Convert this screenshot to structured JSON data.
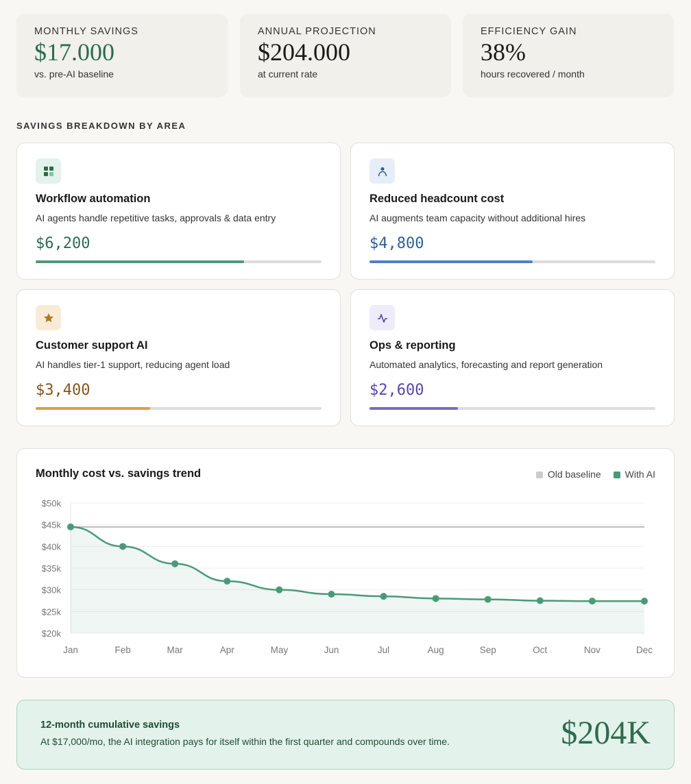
{
  "kpis": [
    {
      "label": "Monthly savings",
      "value": "$17.000",
      "sub": "vs. pre-AI baseline",
      "color": "#2d6b4f"
    },
    {
      "label": "Annual projection",
      "value": "$204.000",
      "sub": "at current rate",
      "color": "#111111"
    },
    {
      "label": "Efficiency gain",
      "value": "38%",
      "sub": "hours recovered / month",
      "color": "#111111"
    }
  ],
  "section_title": "SAVINGS BREAKDOWN BY AREA",
  "areas": [
    {
      "title": "Workflow automation",
      "desc": "AI agents handle repetitive tasks, approvals & data entry",
      "amount": "$6,200",
      "progress": 0.73,
      "color": "#4a9a78",
      "text_color": "#2d6b4f",
      "icon_bg": "#e3f2ea",
      "icon": "grid-icon"
    },
    {
      "title": "Reduced headcount cost",
      "desc": "AI augments team capacity without additional hires",
      "amount": "$4,800",
      "progress": 0.57,
      "color": "#4a82cc",
      "text_color": "#2e5f99",
      "icon_bg": "#e6eefa",
      "icon": "user-icon"
    },
    {
      "title": "Customer support AI",
      "desc": "AI handles tier-1 support, reducing agent load",
      "amount": "$3,400",
      "progress": 0.4,
      "color": "#dba13d",
      "text_color": "#85561c",
      "icon_bg": "#f8ecd9",
      "icon": "star-icon"
    },
    {
      "title": "Ops & reporting",
      "desc": "Automated analytics, forecasting and report generation",
      "amount": "$2,600",
      "progress": 0.31,
      "color": "#7a68c8",
      "text_color": "#5a46a8",
      "icon_bg": "#eeebfb",
      "icon": "activity-icon"
    }
  ],
  "chart_data": {
    "type": "line",
    "title": "Monthly cost vs. savings trend",
    "categories": [
      "Jan",
      "Feb",
      "Mar",
      "Apr",
      "May",
      "Jun",
      "Jul",
      "Aug",
      "Sep",
      "Oct",
      "Nov",
      "Dec"
    ],
    "series": [
      {
        "name": "Old baseline",
        "color": "#cccccc",
        "values": [
          44.5,
          44.5,
          44.5,
          44.5,
          44.5,
          44.5,
          44.5,
          44.5,
          44.5,
          44.5,
          44.5,
          44.5
        ]
      },
      {
        "name": "With AI",
        "color": "#4a9a78",
        "values": [
          44.5,
          40,
          36,
          32,
          30,
          29,
          28.5,
          28,
          27.8,
          27.5,
          27.4,
          27.4
        ]
      }
    ],
    "y_ticks": [
      "$20k",
      "$25k",
      "$30k",
      "$35k",
      "$40k",
      "$45k",
      "$50k"
    ],
    "ylim": [
      20,
      50
    ],
    "ylabel_unit": "k USD",
    "legend": "top-right",
    "grid": true
  },
  "footer": {
    "title": "12-month cumulative savings",
    "text": "At $17,000/mo, the AI integration pays for itself within the first quarter and compounds over time.",
    "value": "$204K"
  }
}
